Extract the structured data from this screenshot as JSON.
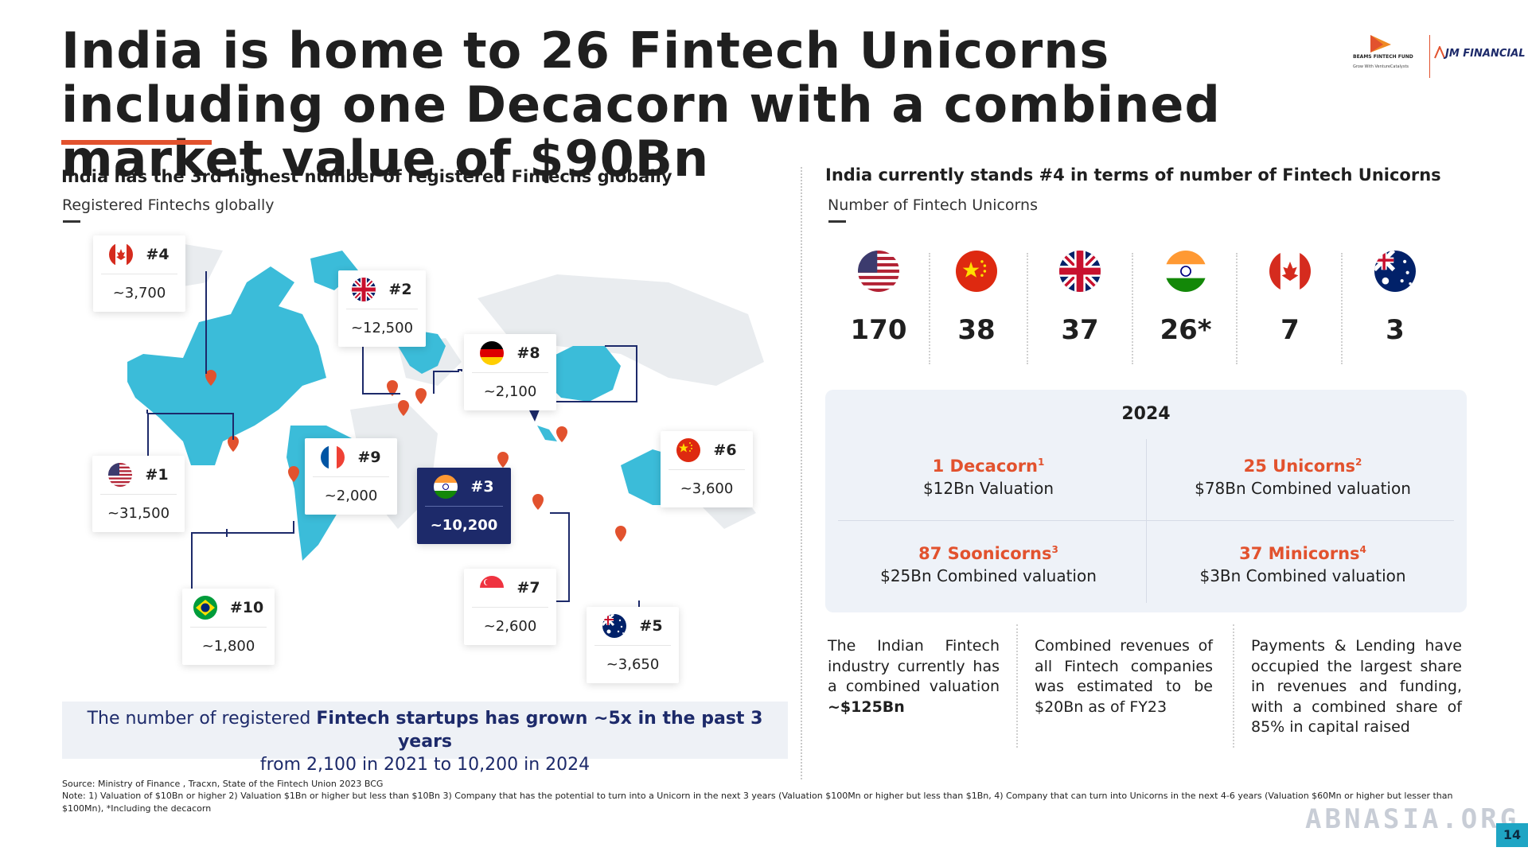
{
  "title": "India is home to 26 Fintech Unicorns including one Decacorn with a combined market value of $90Bn",
  "logos": {
    "beams_name": "BEAMS FINTECH FUND",
    "beams_sub": "Grow With VentureCatalysts",
    "jm": "JM FINANCIAL"
  },
  "left": {
    "heading": "India has the 3rd highest number of registered Fintechs globally",
    "subheading": "Registered Fintechs globally",
    "cards": [
      {
        "flag": "canada-flag",
        "rank": "#4",
        "value": "~3,700"
      },
      {
        "flag": "uk-flag",
        "rank": "#2",
        "value": "~12,500"
      },
      {
        "flag": "germany-flag",
        "rank": "#8",
        "value": "~2,100"
      },
      {
        "flag": "us-flag",
        "rank": "#1",
        "value": "~31,500"
      },
      {
        "flag": "france-flag",
        "rank": "#9",
        "value": "~2,000"
      },
      {
        "flag": "india-flag",
        "rank": "#3",
        "value": "~10,200"
      },
      {
        "flag": "china-flag",
        "rank": "#6",
        "value": "~3,600"
      },
      {
        "flag": "brazil-flag",
        "rank": "#10",
        "value": "~1,800"
      },
      {
        "flag": "singapore-flag",
        "rank": "#7",
        "value": "~2,600"
      },
      {
        "flag": "australia-flag",
        "rank": "#5",
        "value": "~3,650"
      }
    ],
    "callout": {
      "part1": "The number of registered ",
      "bold": "Fintech startups has grown ~5x in the past 3 years",
      "line2": "from 2,100 in 2021 to 10,200 in 2024"
    }
  },
  "right": {
    "heading": "India currently stands #4 in terms of number of Fintech Unicorns",
    "subheading": "Number of Fintech Unicorns",
    "unicorns": [
      {
        "flag": "us-flag",
        "count": "170"
      },
      {
        "flag": "china-flag",
        "count": "38"
      },
      {
        "flag": "uk-flag",
        "count": "37"
      },
      {
        "flag": "india-flag",
        "count": "26*"
      },
      {
        "flag": "canada-flag",
        "count": "7"
      },
      {
        "flag": "australia-flag",
        "count": "3"
      }
    ],
    "box": {
      "title": "2024",
      "cells": [
        {
          "head": "1 Decacorn",
          "sup": "1",
          "sub": "$12Bn Valuation"
        },
        {
          "head": "25 Unicorns",
          "sup": "2",
          "sub": "$78Bn Combined valuation"
        },
        {
          "head": "87 Soonicorns",
          "sup": "3",
          "sub": "$25Bn Combined valuation"
        },
        {
          "head": "37 Minicorns",
          "sup": "4",
          "sub": "$3Bn Combined valuation"
        }
      ]
    },
    "paras": {
      "p1_text": "The Indian Fintech industry currently has a combined valuation",
      "p1_bold": "~$125Bn",
      "p2": "Combined revenues of all Fintech companies was estimated to be $20Bn as of FY23",
      "p3": "Payments & Lending have occupied the largest share in revenues and funding, with a combined share of 85% in capital raised"
    }
  },
  "footer": {
    "source": "Source: Ministry of Finance , Tracxn, State of the Fintech Union 2023 BCG",
    "note": "Note: 1) Valuation of $10Bn or higher 2) Valuation $1Bn or higher but less than $10Bn 3) Company that has the potential to turn into a Unicorn in the next 3 years (Valuation $100Mn or higher but less than $1Bn, 4) Company that can turn into Unicorns in the next 4-6 years (Valuation $60Mn or higher but lesser than $100Mn), *Including the decacorn"
  },
  "watermark": "ABNASIA.ORG",
  "page_number": "14",
  "colors": {
    "accent": "#e2522e",
    "navy": "#1d2a6a",
    "map": "#3bbcd9",
    "panel": "#eef2f8"
  }
}
